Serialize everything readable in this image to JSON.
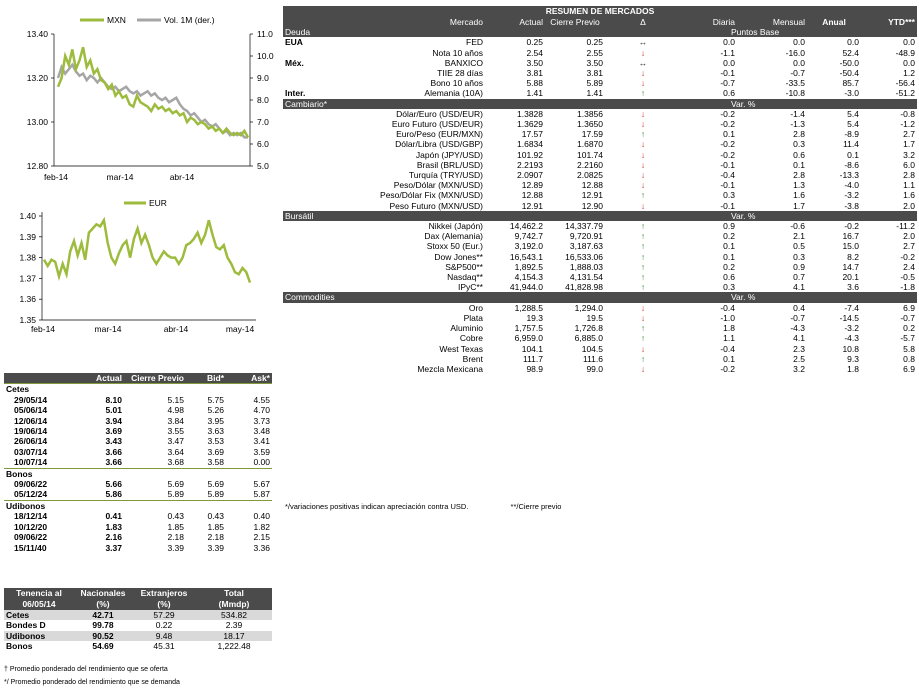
{
  "chart_data": [
    {
      "type": "line",
      "series": [
        {
          "name": "MXN",
          "color": "#9dbb3c",
          "axis": "left",
          "values": [
            13.16,
            13.2,
            13.3,
            13.26,
            13.33,
            13.24,
            13.28,
            13.34,
            13.25,
            13.28,
            13.22,
            13.24,
            13.19,
            13.18,
            13.15,
            13.17,
            13.12,
            13.14,
            13.11,
            13.12,
            13.08,
            13.07,
            13.12,
            13.09,
            13.08,
            13.07,
            13.05,
            13.08,
            13.06,
            13.07,
            13.05,
            13.06,
            13.04,
            13.05,
            13.03,
            13.04,
            13.0,
            13.02,
            13.01,
            12.99,
            13.0,
            12.99,
            12.97,
            12.98,
            12.96,
            12.97,
            12.95,
            12.97,
            12.95,
            12.94,
            12.95,
            12.94,
            12.96,
            12.93
          ]
        },
        {
          "name": "Vol. 1M (der.)",
          "color": "#a6a6a6",
          "axis": "right",
          "values": [
            9.0,
            9.5,
            9.2,
            9.4,
            9.6,
            9.3,
            9.1,
            9.2,
            8.9,
            9.1,
            9.0,
            8.8,
            9.0,
            8.8,
            8.6,
            8.5,
            8.6,
            8.4,
            8.5,
            8.6,
            8.4,
            8.3,
            8.4,
            8.2,
            8.3,
            8.4,
            8.2,
            8.3,
            8.1,
            8.0,
            8.1,
            7.9,
            8.0,
            8.1,
            7.8,
            7.6,
            7.5,
            7.3,
            7.4,
            7.2,
            7.0,
            7.1,
            6.9,
            6.8,
            6.9,
            6.7,
            6.5,
            6.6,
            6.4,
            6.5,
            6.4,
            6.5,
            6.3,
            6.3
          ]
        }
      ],
      "categories_ticks": [
        "feb-14",
        "mar-14",
        "abr-14"
      ],
      "yticks_left": [
        "13.40",
        "13.20",
        "13.00",
        "12.80"
      ],
      "yticks_right": [
        "11.0",
        "10.0",
        "9.0",
        "8.0",
        "7.0",
        "6.0",
        "5.0"
      ],
      "ylim_left": [
        12.8,
        13.4
      ],
      "ylim_right": [
        5.0,
        11.0
      ]
    },
    {
      "type": "line",
      "series": [
        {
          "name": "EUR",
          "color": "#9dbb3c",
          "values": [
            1.379,
            1.376,
            1.379,
            1.378,
            1.371,
            1.377,
            1.372,
            1.383,
            1.388,
            1.381,
            1.387,
            1.379,
            1.392,
            1.394,
            1.396,
            1.395,
            1.398,
            1.387,
            1.38,
            1.377,
            1.382,
            1.386,
            1.388,
            1.38,
            1.389,
            1.394,
            1.387,
            1.391,
            1.386,
            1.38,
            1.377,
            1.38,
            1.383,
            1.381,
            1.38,
            1.38,
            1.377,
            1.38,
            1.386,
            1.387,
            1.389,
            1.392,
            1.387,
            1.391,
            1.398,
            1.391,
            1.385,
            1.384,
            1.386,
            1.38,
            1.377,
            1.373,
            1.372,
            1.375,
            1.373,
            1.368
          ]
        }
      ],
      "categories_ticks": [
        "feb-14",
        "mar-14",
        "abr-14",
        "may-14"
      ],
      "yticks": [
        "1.40",
        "1.39",
        "1.38",
        "1.37",
        "1.36",
        "1.35"
      ],
      "ylim": [
        1.35,
        1.4
      ]
    }
  ],
  "cetes": {
    "headers": [
      "Actual",
      "Cierre Previo",
      "Bid*",
      "Ask*"
    ],
    "sections": [
      {
        "name": "Cetes",
        "rows": [
          [
            "29/05/14",
            "8.10",
            "5.15",
            "5.75",
            "4.55"
          ],
          [
            "05/06/14",
            "5.01",
            "4.98",
            "5.26",
            "4.70"
          ],
          [
            "12/06/14",
            "3.94",
            "3.84",
            "3.95",
            "3.73"
          ],
          [
            "19/06/14",
            "3.69",
            "3.55",
            "3.63",
            "3.48"
          ],
          [
            "26/06/14",
            "3.43",
            "3.47",
            "3.53",
            "3.41"
          ],
          [
            "03/07/14",
            "3.66",
            "3.64",
            "3.69",
            "3.59"
          ],
          [
            "10/07/14",
            "3.66",
            "3.68",
            "3.58",
            "0.00"
          ]
        ]
      },
      {
        "name": "Bonos",
        "rows": [
          [
            "09/06/22",
            "5.66",
            "5.69",
            "5.69",
            "5.67"
          ],
          [
            "05/12/24",
            "5.86",
            "5.89",
            "5.89",
            "5.87"
          ]
        ]
      },
      {
        "name": "Udibonos",
        "rows": [
          [
            "18/12/14",
            "0.41",
            "0.43",
            "0.43",
            "0.40"
          ],
          [
            "10/12/20",
            "1.83",
            "1.85",
            "1.85",
            "1.82"
          ],
          [
            "09/06/22",
            "2.16",
            "2.18",
            "2.18",
            "2.15"
          ],
          [
            "15/11/40",
            "3.37",
            "3.39",
            "3.39",
            "3.36"
          ]
        ]
      }
    ]
  },
  "tenencia": {
    "headers": [
      [
        "Tenencia al",
        "06/05/14"
      ],
      [
        "Nacionales",
        "(%)"
      ],
      [
        "Extranjeros",
        "(%)"
      ],
      [
        "Total",
        "(Mmdp)"
      ]
    ],
    "rows": [
      [
        "Cetes",
        "42.71",
        "57.29",
        "534.82"
      ],
      [
        "Bondes D",
        "99.78",
        "0.22",
        "2.39"
      ],
      [
        "Udibonos",
        "90.52",
        "9.48",
        "18.17"
      ],
      [
        "Bonos",
        "54.69",
        "45.31",
        "1,222.48"
      ]
    ],
    "footnotes": [
      "† Promedio ponderado del rendimiento que se oferta",
      "*/ Promedio ponderado del rendimiento que se demanda"
    ]
  },
  "market": {
    "title": "RESUMEN DE MERCADOS",
    "columns": [
      "Mercado",
      "Actual",
      "Cierre Previo",
      "Δ",
      "Diaria",
      "Mensual",
      "Anual",
      "YTD***"
    ],
    "sections": [
      {
        "name": "Deuda",
        "unit": "Puntos Base",
        "rows": [
          {
            "group": "EUA",
            "name": "FED",
            "actual": "0.25",
            "prev": "0.25",
            "dir": "flat",
            "d": "0.0",
            "m": "0.0",
            "a": "0.0",
            "y": "0.0"
          },
          {
            "group": "",
            "name": "Nota 10 años",
            "actual": "2.54",
            "prev": "2.55",
            "dir": "down",
            "d": "-1.1",
            "m": "-16.0",
            "a": "52.4",
            "y": "-48.9"
          },
          {
            "group": "Méx.",
            "name": "BANXICO",
            "actual": "3.50",
            "prev": "3.50",
            "dir": "flat",
            "d": "0.0",
            "m": "0.0",
            "a": "-50.0",
            "y": "0.0"
          },
          {
            "group": "",
            "name": "TIIE 28 días",
            "actual": "3.81",
            "prev": "3.81",
            "dir": "down",
            "d": "-0.1",
            "m": "-0.7",
            "a": "-50.4",
            "y": "1.2"
          },
          {
            "group": "",
            "name": "Bono 10 años",
            "actual": "5.88",
            "prev": "5.89",
            "dir": "down",
            "d": "-0.7",
            "m": "-33.5",
            "a": "85.7",
            "y": "-56.4"
          },
          {
            "group": "Inter.",
            "name": "Alemania (10A)",
            "actual": "1.41",
            "prev": "1.41",
            "dir": "up",
            "d": "0.6",
            "m": "-10.8",
            "a": "-3.0",
            "y": "-51.2"
          }
        ]
      },
      {
        "name": "Cambiario*",
        "unit": "Var. %",
        "rows": [
          {
            "group": "",
            "name": "Dólar/Euro (USD/EUR)",
            "actual": "1.3828",
            "prev": "1.3856",
            "dir": "down",
            "d": "-0.2",
            "m": "-1.4",
            "a": "5.4",
            "y": "-0.8"
          },
          {
            "group": "",
            "name": "Euro Futuro (USD/EUR)",
            "actual": "1.3629",
            "prev": "1.3650",
            "dir": "down",
            "d": "-0.2",
            "m": "-1.3",
            "a": "5.4",
            "y": "-1.2"
          },
          {
            "group": "",
            "name": "Euro/Peso (EUR/MXN)",
            "actual": "17.57",
            "prev": "17.59",
            "dir": "up",
            "d": "0.1",
            "m": "2.8",
            "a": "-8.9",
            "y": "2.7"
          },
          {
            "group": "",
            "name": "Dólar/Libra (USD/GBP)",
            "actual": "1.6834",
            "prev": "1.6870",
            "dir": "down",
            "d": "-0.2",
            "m": "0.3",
            "a": "11.4",
            "y": "1.7"
          },
          {
            "group": "",
            "name": "Japón (JPY/USD)",
            "actual": "101.92",
            "prev": "101.74",
            "dir": "down",
            "d": "-0.2",
            "m": "0.6",
            "a": "0.1",
            "y": "3.2"
          },
          {
            "group": "",
            "name": "Brasil (BRL/USD)",
            "actual": "2.2193",
            "prev": "2.2160",
            "dir": "down",
            "d": "-0.1",
            "m": "0.1",
            "a": "-8.6",
            "y": "6.0"
          },
          {
            "group": "",
            "name": "Turquía (TRY/USD)",
            "actual": "2.0907",
            "prev": "2.0825",
            "dir": "down",
            "d": "-0.4",
            "m": "2.8",
            "a": "-13.3",
            "y": "2.8"
          },
          {
            "group": "",
            "name": "Peso/Dólar (MXN/USD)",
            "actual": "12.89",
            "prev": "12.88",
            "dir": "down",
            "d": "-0.1",
            "m": "1.3",
            "a": "-4.0",
            "y": "1.1"
          },
          {
            "group": "",
            "name": "Peso/Dólar Fix (MXN/USD)",
            "actual": "12.88",
            "prev": "12.91",
            "dir": "up",
            "d": "0.3",
            "m": "1.6",
            "a": "-3.2",
            "y": "1.6"
          },
          {
            "group": "",
            "name": "Peso Futuro (MXN/USD)",
            "actual": "12.91",
            "prev": "12.90",
            "dir": "down",
            "d": "-0.1",
            "m": "1.7",
            "a": "-3.8",
            "y": "2.0"
          }
        ]
      },
      {
        "name": "Bursátil",
        "unit": "Var. %",
        "rows": [
          {
            "group": "",
            "name": "Nikkei (Japón)",
            "actual": "14,462.2",
            "prev": "14,337.79",
            "dir": "up",
            "d": "0.9",
            "m": "-0.6",
            "a": "-0.2",
            "y": "-11.2"
          },
          {
            "group": "",
            "name": "Dax (Alemania)",
            "actual": "9,742.7",
            "prev": "9,720.91",
            "dir": "up",
            "d": "0.2",
            "m": "2.1",
            "a": "16.7",
            "y": "2.0"
          },
          {
            "group": "",
            "name": "Stoxx 50 (Eur.)",
            "actual": "3,192.0",
            "prev": "3,187.63",
            "dir": "up",
            "d": "0.1",
            "m": "0.5",
            "a": "15.0",
            "y": "2.7"
          },
          {
            "group": "",
            "name": "Dow Jones**",
            "actual": "16,543.1",
            "prev": "16,533.06",
            "dir": "up",
            "d": "0.1",
            "m": "0.3",
            "a": "8.2",
            "y": "-0.2"
          },
          {
            "group": "",
            "name": "S&P500**",
            "actual": "1,892.5",
            "prev": "1,888.03",
            "dir": "up",
            "d": "0.2",
            "m": "0.9",
            "a": "14.7",
            "y": "2.4"
          },
          {
            "group": "",
            "name": "Nasdaq**",
            "actual": "4,154.3",
            "prev": "4,131.54",
            "dir": "up",
            "d": "0.6",
            "m": "0.7",
            "a": "20.1",
            "y": "-0.5"
          },
          {
            "group": "",
            "name": "IPyC**",
            "actual": "41,944.0",
            "prev": "41,828.98",
            "dir": "up",
            "d": "0.3",
            "m": "4.1",
            "a": "3.6",
            "y": "-1.8"
          }
        ]
      },
      {
        "name": "Commodities",
        "unit": "Var. %",
        "rows": [
          {
            "group": "",
            "name": "Oro",
            "actual": "1,288.5",
            "prev": "1,294.0",
            "dir": "down",
            "d": "-0.4",
            "m": "0.4",
            "a": "-7.4",
            "y": "6.9"
          },
          {
            "group": "",
            "name": "Plata",
            "actual": "19.3",
            "prev": "19.5",
            "dir": "down",
            "d": "-1.0",
            "m": "-0.7",
            "a": "-14.5",
            "y": "-0.7"
          },
          {
            "group": "",
            "name": "Aluminio",
            "actual": "1,757.5",
            "prev": "1,726.8",
            "dir": "up",
            "d": "1.8",
            "m": "-4.3",
            "a": "-3.2",
            "y": "0.2"
          },
          {
            "group": "",
            "name": "Cobre",
            "actual": "6,959.0",
            "prev": "6,885.0",
            "dir": "up",
            "d": "1.1",
            "m": "4.1",
            "a": "-4.3",
            "y": "-5.7"
          },
          {
            "group": "",
            "name": "West Texas",
            "actual": "104.1",
            "prev": "104.5",
            "dir": "down",
            "d": "-0.4",
            "m": "2.3",
            "a": "10.8",
            "y": "5.8"
          },
          {
            "group": "",
            "name": "Brent",
            "actual": "111.7",
            "prev": "111.6",
            "dir": "up",
            "d": "0.1",
            "m": "2.5",
            "a": "9.3",
            "y": "0.8"
          },
          {
            "group": "",
            "name": "Mezcla Mexicana",
            "actual": "98.9",
            "prev": "99.0",
            "dir": "down",
            "d": "-0.2",
            "m": "3.2",
            "a": "1.8",
            "y": "6.9"
          }
        ]
      }
    ],
    "note_left": "*/variaciones positivas indican apreciación contra USD.",
    "note_right": "**/Cierre previo"
  },
  "icons": {
    "up": "arrow-up-icon",
    "down": "arrow-down-icon",
    "flat": "arrow-left-right-icon"
  }
}
